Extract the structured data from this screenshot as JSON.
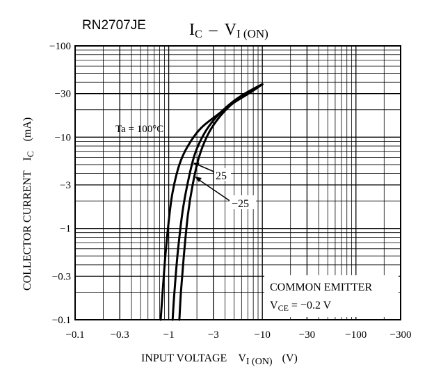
{
  "chart_data": {
    "type": "line",
    "part_number": "RN2707JE",
    "title": {
      "main": "I",
      "main_sub": "C",
      "dash": "–",
      "var": "V",
      "var_sub": "I (ON)"
    },
    "xlabel": {
      "text": "INPUT VOLTAGE",
      "var": "V",
      "var_sub": "I (ON)",
      "unit": "(V)"
    },
    "ylabel": {
      "text": "COLLECTOR CURRENT",
      "var": "I",
      "var_sub": "C",
      "unit": "(mA)"
    },
    "x_scale": "log",
    "y_scale": "log",
    "xlim": [
      -0.1,
      -300
    ],
    "ylim": [
      -0.1,
      -100
    ],
    "grid": true,
    "x_ticks": [
      {
        "v": -0.1,
        "label": "−0.1"
      },
      {
        "v": -0.3,
        "label": "−0.3"
      },
      {
        "v": -1,
        "label": "−1"
      },
      {
        "v": -3,
        "label": "−3"
      },
      {
        "v": -10,
        "label": "−10"
      },
      {
        "v": -30,
        "label": "−30"
      },
      {
        "v": -100,
        "label": "−100"
      },
      {
        "v": -300,
        "label": "−300"
      }
    ],
    "y_ticks": [
      {
        "v": -100,
        "label": "−100"
      },
      {
        "v": -30,
        "label": "−30"
      },
      {
        "v": -10,
        "label": "−10"
      },
      {
        "v": -3,
        "label": "−3"
      },
      {
        "v": -1,
        "label": "−1"
      },
      {
        "v": -0.3,
        "label": "−0.3"
      },
      {
        "v": -0.1,
        "label": "−0.1"
      }
    ],
    "series": [
      {
        "name": "Ta = 100°C",
        "x": [
          -0.82,
          -0.86,
          -0.92,
          -1.0,
          -1.1,
          -1.3,
          -1.6,
          -2.2,
          -3.3,
          -5.0,
          -7.5,
          -10
        ],
        "y": [
          -0.1,
          -0.2,
          -0.5,
          -1.2,
          -2.5,
          -5.0,
          -8.0,
          -12.5,
          -17.5,
          -24,
          -31,
          -38
        ]
      },
      {
        "name": "25",
        "x": [
          -1.1,
          -1.15,
          -1.25,
          -1.4,
          -1.6,
          -1.9,
          -2.4,
          -3.2,
          -4.5,
          -6.5,
          -10
        ],
        "y": [
          -0.1,
          -0.2,
          -0.55,
          -1.5,
          -3.2,
          -6.5,
          -11,
          -16.5,
          -23,
          -30,
          -38
        ]
      },
      {
        "name": "−25",
        "x": [
          -1.3,
          -1.35,
          -1.45,
          -1.6,
          -1.8,
          -2.1,
          -2.6,
          -3.3,
          -4.5,
          -6.5,
          -10
        ],
        "y": [
          -0.1,
          -0.2,
          -0.5,
          -1.4,
          -3.0,
          -6.0,
          -10.5,
          -15.5,
          -22,
          -29.5,
          -38
        ]
      }
    ],
    "annotations": {
      "ta_label": "Ta = 100°C",
      "label_25": "25",
      "label_m25": "−25",
      "box_line1": "COMMON EMITTER",
      "box_var": "V",
      "box_sub": "CE",
      "box_value": " = −0.2 V"
    }
  }
}
